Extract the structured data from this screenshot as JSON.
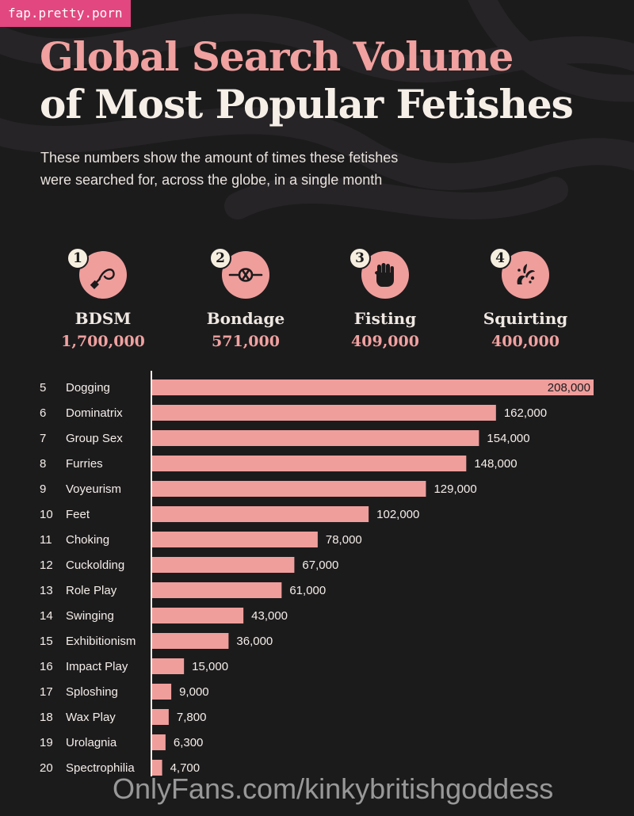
{
  "watermark_top": "fap.pretty.porn",
  "header": {
    "title_line1": "Global Search Volume",
    "title_line2": "of Most Popular Fetishes",
    "subtitle_line1": "These numbers show the amount of times these fetishes",
    "subtitle_line2": "were searched for, across the globe, in a single month"
  },
  "top_four": [
    {
      "rank": "1",
      "name": "BDSM",
      "value": "1,700,000",
      "icon": "whip-icon"
    },
    {
      "rank": "2",
      "name": "Bondage",
      "value": "571,000",
      "icon": "rope-knot-icon"
    },
    {
      "rank": "3",
      "name": "Fisting",
      "value": "409,000",
      "icon": "fist-icon"
    },
    {
      "rank": "4",
      "name": "Squirting",
      "value": "400,000",
      "icon": "splash-icon"
    }
  ],
  "colors": {
    "background": "#1c1b1c",
    "accent_pink": "#ef9e9c",
    "title_pink": "#f0a1a0",
    "text_light": "#f4eee9",
    "watermark_pink": "#e2477f"
  },
  "chart_data": {
    "type": "bar",
    "orientation": "horizontal",
    "ranks": [
      "5",
      "6",
      "7",
      "8",
      "9",
      "10",
      "11",
      "12",
      "13",
      "14",
      "15",
      "16",
      "17",
      "18",
      "19",
      "20"
    ],
    "categories": [
      "Dogging",
      "Dominatrix",
      "Group Sex",
      "Furries",
      "Voyeurism",
      "Feet",
      "Choking",
      "Cuckolding",
      "Role Play",
      "Swinging",
      "Exhibitionism",
      "Impact Play",
      "Sploshing",
      "Wax Play",
      "Urolagnia",
      "Spectrophilia"
    ],
    "values": [
      208000,
      162000,
      154000,
      148000,
      129000,
      102000,
      78000,
      67000,
      61000,
      43000,
      36000,
      15000,
      9000,
      7800,
      6300,
      4700
    ],
    "value_labels": [
      "208,000",
      "162,000",
      "154,000",
      "148,000",
      "129,000",
      "102,000",
      "78,000",
      "67,000",
      "61,000",
      "43,000",
      "36,000",
      "15,000",
      "9,000",
      "7,800",
      "6,300",
      "4,700"
    ],
    "xlim": [
      0,
      208000
    ],
    "grid": false,
    "legend": "none"
  },
  "watermark_bottom": "OnlyFans.com/kinkybritishgoddess"
}
